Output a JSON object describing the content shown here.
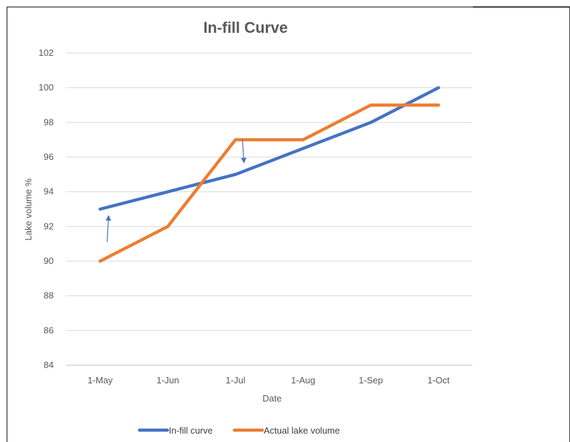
{
  "chart_data": {
    "type": "line",
    "title": "In-fill Curve",
    "xlabel": "Date",
    "ylabel": "Lake volume %",
    "categories": [
      "1-May",
      "1-Jun",
      "1-Jul",
      "1-Aug",
      "1-Sep",
      "1-Oct"
    ],
    "ylim": [
      84,
      102
    ],
    "ytick_step": 2,
    "grid": true,
    "legend": "bottom",
    "series": [
      {
        "name": "In-fill curve",
        "color": "#4472C4",
        "values": [
          93,
          94,
          95,
          96.5,
          98,
          100
        ]
      },
      {
        "name": "Actual lake volume",
        "color": "#ED7D31",
        "values": [
          90,
          92,
          97,
          97,
          99,
          99
        ]
      }
    ],
    "annotations": [
      {
        "type": "arrow",
        "x": "1-May",
        "from": 91.1,
        "to": 92.5,
        "color": "#4472C4"
      },
      {
        "type": "arrow",
        "x": "1-Jul",
        "from": 97,
        "to": 95.8,
        "color": "#4472C4"
      }
    ]
  }
}
